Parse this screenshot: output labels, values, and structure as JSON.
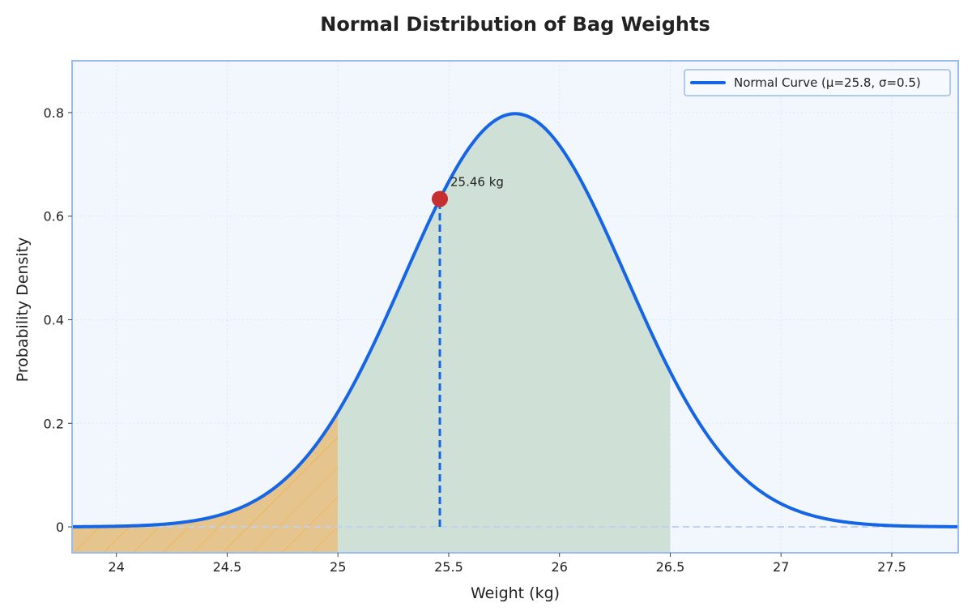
{
  "chart_data": {
    "type": "line",
    "title": "Normal Distribution of Bag Weights",
    "xlabel": "Weight (kg)",
    "ylabel": "Probability Density",
    "xlim": [
      23.8,
      27.8
    ],
    "ylim": [
      -0.05,
      0.9
    ],
    "x_ticks": [
      24,
      24.5,
      25,
      25.5,
      26,
      26.5,
      27,
      27.5
    ],
    "x_tick_labels": [
      "24",
      "24.5",
      "25",
      "25.5",
      "26",
      "26.5",
      "27",
      "27.5"
    ],
    "y_ticks": [
      0,
      0.2,
      0.4,
      0.6,
      0.8
    ],
    "y_tick_labels": [
      "0",
      "0.2",
      "0.4",
      "0.6",
      "0.8"
    ],
    "grid": true,
    "legend_position": "top-right",
    "series": [
      {
        "name": "Normal Curve (μ=25.8, σ=0.5)",
        "type": "normal_pdf",
        "mu": 25.8,
        "sigma": 0.5,
        "color": "#1565e6"
      }
    ],
    "shaded_regions": [
      {
        "from": 23.8,
        "to": 25.0,
        "color": "#e5c48e",
        "hatch": "#f0b45a"
      },
      {
        "from": 25.0,
        "to": 26.5,
        "color": "#cfe1d7"
      }
    ],
    "marker": {
      "x": 25.46,
      "label": "25.46 kg",
      "color": "#c62f2f"
    },
    "colors": {
      "plot_background": "#f2f7fd",
      "plot_border": "#9cbcf0",
      "curve": "#1565e6",
      "baseline": "#bcd2f0"
    }
  }
}
